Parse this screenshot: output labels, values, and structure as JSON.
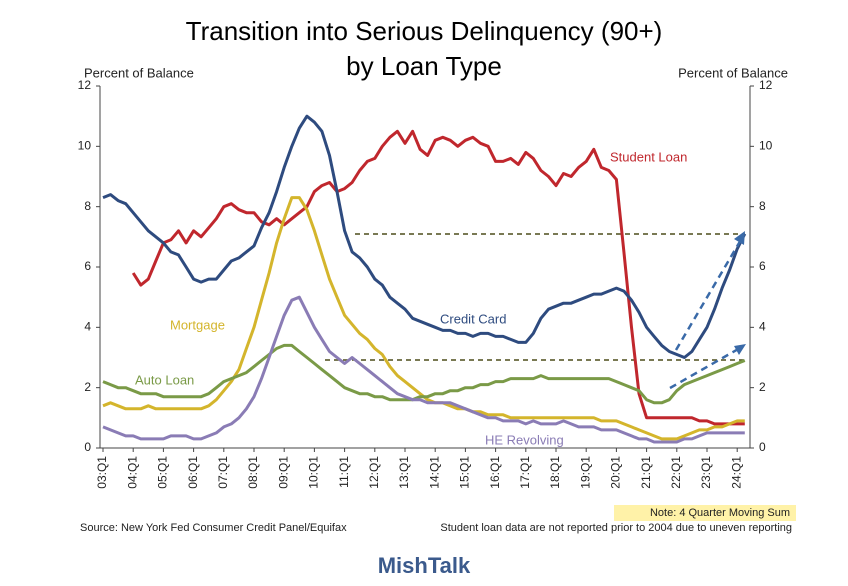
{
  "chart_data": {
    "type": "line",
    "title_lines": [
      "Transition into Serious Delinquency (90+)",
      "by Loan Type"
    ],
    "y_label": "Percent of Balance",
    "y2_label": "Percent of Balance",
    "source": "Source: New York Fed Consumer Credit Panel/Equifax",
    "note": "Note: 4 Quarter Moving Sum",
    "footnote": "Student loan data are not reported prior to 2004 due to uneven reporting",
    "watermark": "MishTalk",
    "categories": [
      "03:Q1",
      null,
      null,
      null,
      "04:Q1",
      null,
      null,
      null,
      "05:Q1",
      null,
      null,
      null,
      "06:Q1",
      null,
      null,
      null,
      "07:Q1",
      null,
      null,
      null,
      "08:Q1",
      null,
      null,
      null,
      "09:Q1",
      null,
      null,
      null,
      "10:Q1",
      null,
      null,
      null,
      "11:Q1",
      null,
      null,
      null,
      "12:Q1",
      null,
      null,
      null,
      "13:Q1",
      null,
      null,
      null,
      "14:Q1",
      null,
      null,
      null,
      "15:Q1",
      null,
      null,
      null,
      "16:Q1",
      null,
      null,
      null,
      "17:Q1",
      null,
      null,
      null,
      "18:Q1",
      null,
      null,
      null,
      "19:Q1",
      null,
      null,
      null,
      "20:Q1",
      null,
      null,
      null,
      "21:Q1",
      null,
      null,
      null,
      "22:Q1",
      null,
      null,
      null,
      "23:Q1",
      null,
      null,
      null,
      "24:Q1",
      null
    ],
    "series": [
      {
        "name": "Student Loan",
        "color": "#c0272d",
        "values": [
          null,
          null,
          null,
          null,
          5.8,
          5.4,
          5.6,
          6.2,
          6.8,
          6.9,
          7.2,
          6.8,
          7.2,
          7.0,
          7.3,
          7.6,
          8.0,
          8.1,
          7.9,
          7.8,
          7.8,
          7.5,
          7.4,
          7.6,
          7.4,
          7.6,
          7.8,
          8.0,
          8.5,
          8.7,
          8.8,
          8.5,
          8.6,
          8.8,
          9.2,
          9.5,
          9.6,
          10.0,
          10.3,
          10.5,
          10.1,
          10.5,
          9.9,
          9.7,
          10.2,
          10.3,
          10.2,
          10.0,
          10.2,
          10.3,
          10.1,
          10.0,
          9.5,
          9.5,
          9.6,
          9.4,
          9.8,
          9.6,
          9.2,
          9.0,
          8.7,
          9.1,
          9.0,
          9.3,
          9.5,
          9.9,
          9.3,
          9.2,
          8.9,
          6.5,
          4.0,
          1.8,
          1.0,
          1.0,
          1.0,
          1.0,
          1.0,
          1.0,
          1.0,
          0.9,
          0.9,
          0.8,
          0.8,
          0.8,
          0.8,
          0.8
        ]
      },
      {
        "name": "Credit Card",
        "color": "#2e4b7f",
        "values": [
          8.3,
          8.4,
          8.2,
          8.1,
          7.8,
          7.5,
          7.2,
          7.0,
          6.8,
          6.5,
          6.4,
          6.0,
          5.6,
          5.5,
          5.6,
          5.6,
          5.9,
          6.2,
          6.3,
          6.5,
          6.7,
          7.3,
          7.8,
          8.5,
          9.3,
          10.0,
          10.6,
          11.0,
          10.8,
          10.5,
          9.7,
          8.5,
          7.2,
          6.5,
          6.3,
          6.0,
          5.6,
          5.4,
          5.0,
          4.8,
          4.6,
          4.3,
          4.2,
          4.1,
          4.0,
          3.9,
          3.9,
          3.8,
          3.8,
          3.7,
          3.8,
          3.8,
          3.7,
          3.7,
          3.6,
          3.5,
          3.5,
          3.8,
          4.3,
          4.6,
          4.7,
          4.8,
          4.8,
          4.9,
          5.0,
          5.1,
          5.1,
          5.2,
          5.3,
          5.2,
          4.9,
          4.5,
          4.0,
          3.7,
          3.4,
          3.2,
          3.1,
          3.0,
          3.2,
          3.6,
          4.0,
          4.6,
          5.3,
          5.9,
          6.6,
          7.1
        ]
      },
      {
        "name": "Mortgage",
        "color": "#d4b52c",
        "values": [
          1.4,
          1.5,
          1.4,
          1.3,
          1.3,
          1.3,
          1.4,
          1.3,
          1.3,
          1.3,
          1.3,
          1.3,
          1.3,
          1.3,
          1.4,
          1.6,
          1.9,
          2.2,
          2.6,
          3.3,
          4.0,
          4.9,
          5.8,
          6.8,
          7.6,
          8.3,
          8.3,
          7.9,
          7.2,
          6.4,
          5.6,
          5.0,
          4.4,
          4.1,
          3.8,
          3.6,
          3.3,
          3.1,
          2.7,
          2.4,
          2.2,
          2.0,
          1.8,
          1.6,
          1.5,
          1.5,
          1.4,
          1.3,
          1.3,
          1.2,
          1.2,
          1.1,
          1.1,
          1.1,
          1.0,
          1.0,
          1.0,
          1.0,
          1.0,
          1.0,
          1.0,
          1.0,
          1.0,
          1.0,
          1.0,
          1.0,
          0.9,
          0.9,
          0.9,
          0.8,
          0.7,
          0.6,
          0.5,
          0.4,
          0.3,
          0.3,
          0.3,
          0.4,
          0.5,
          0.6,
          0.6,
          0.7,
          0.7,
          0.8,
          0.9,
          0.9
        ]
      },
      {
        "name": "Auto Loan",
        "color": "#7a9a47",
        "values": [
          2.2,
          2.1,
          2.0,
          2.0,
          1.9,
          1.8,
          1.8,
          1.8,
          1.7,
          1.7,
          1.7,
          1.7,
          1.7,
          1.7,
          1.8,
          2.0,
          2.2,
          2.3,
          2.4,
          2.5,
          2.7,
          2.9,
          3.1,
          3.3,
          3.4,
          3.4,
          3.2,
          3.0,
          2.8,
          2.6,
          2.4,
          2.2,
          2.0,
          1.9,
          1.8,
          1.8,
          1.7,
          1.7,
          1.6,
          1.6,
          1.6,
          1.6,
          1.7,
          1.7,
          1.8,
          1.8,
          1.9,
          1.9,
          2.0,
          2.0,
          2.1,
          2.1,
          2.2,
          2.2,
          2.3,
          2.3,
          2.3,
          2.3,
          2.4,
          2.3,
          2.3,
          2.3,
          2.3,
          2.3,
          2.3,
          2.3,
          2.3,
          2.3,
          2.2,
          2.1,
          2.0,
          1.9,
          1.6,
          1.5,
          1.5,
          1.6,
          1.9,
          2.1,
          2.2,
          2.3,
          2.4,
          2.5,
          2.6,
          2.7,
          2.8,
          2.9
        ]
      },
      {
        "name": "HE Revolving",
        "color": "#8a7cb5",
        "values": [
          0.7,
          0.6,
          0.5,
          0.4,
          0.4,
          0.3,
          0.3,
          0.3,
          0.3,
          0.4,
          0.4,
          0.4,
          0.3,
          0.3,
          0.4,
          0.5,
          0.7,
          0.8,
          1.0,
          1.3,
          1.7,
          2.3,
          3.0,
          3.7,
          4.4,
          4.9,
          5.0,
          4.5,
          4.0,
          3.6,
          3.2,
          3.0,
          2.8,
          3.0,
          2.8,
          2.6,
          2.4,
          2.2,
          2.0,
          1.8,
          1.7,
          1.6,
          1.6,
          1.5,
          1.5,
          1.5,
          1.5,
          1.4,
          1.3,
          1.2,
          1.1,
          1.0,
          1.0,
          0.9,
          0.9,
          0.9,
          0.8,
          0.9,
          0.8,
          0.8,
          0.8,
          0.9,
          0.8,
          0.7,
          0.7,
          0.7,
          0.6,
          0.6,
          0.6,
          0.5,
          0.4,
          0.3,
          0.3,
          0.2,
          0.2,
          0.2,
          0.2,
          0.3,
          0.3,
          0.4,
          0.5,
          0.5,
          0.5,
          0.5,
          0.5,
          0.5
        ]
      }
    ],
    "ylim": [
      0,
      12
    ],
    "yticks": [
      0,
      2,
      4,
      6,
      8,
      10,
      12
    ],
    "y2lim": [
      0,
      12
    ],
    "y2ticks": [
      0,
      2,
      4,
      6,
      8,
      10,
      12
    ]
  }
}
